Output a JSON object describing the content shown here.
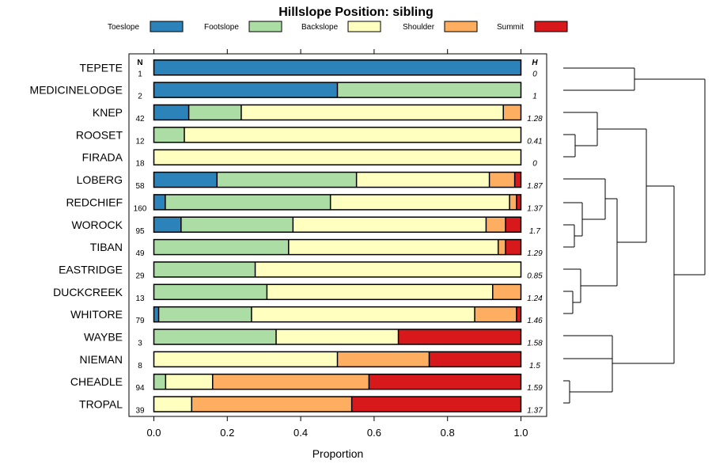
{
  "chart_data": {
    "type": "bar",
    "stacked": true,
    "orientation": "horizontal",
    "title": "Hillslope Position: sibling",
    "xlabel": "Proportion",
    "ylabel": "",
    "xlim": [
      0,
      1
    ],
    "xticks": [
      "0.0",
      "0.2",
      "0.4",
      "0.6",
      "0.8",
      "1.0"
    ],
    "xtick_values": [
      0,
      0.2,
      0.4,
      0.6,
      0.8,
      1.0
    ],
    "legend_position": "top",
    "n_header": "N",
    "h_header": "H",
    "categories": [
      "TEPETE",
      "MEDICINELODGE",
      "KNEP",
      "ROOSET",
      "FIRADA",
      "LOBERG",
      "REDCHIEF",
      "WOROCK",
      "TIBAN",
      "EASTRIDGE",
      "DUCKCREEK",
      "WHITORE",
      "WAYBE",
      "NIEMAN",
      "CHEADLE",
      "TROPAL"
    ],
    "n_values": [
      "1",
      "2",
      "42",
      "12",
      "18",
      "58",
      "160",
      "95",
      "49",
      "29",
      "13",
      "79",
      "3",
      "8",
      "94",
      "39"
    ],
    "h_values": [
      "0",
      "1",
      "1.28",
      "0.41",
      "0",
      "1.87",
      "1.37",
      "1.7",
      "1.29",
      "0.85",
      "1.24",
      "1.46",
      "1.58",
      "1.5",
      "1.59",
      "1.37"
    ],
    "series": [
      {
        "name": "Toeslope",
        "color": "#2b83ba",
        "values": [
          1.0,
          0.5,
          0.095,
          0,
          0,
          0.172,
          0.031,
          0.074,
          0,
          0,
          0,
          0.013,
          0,
          0,
          0,
          0
        ]
      },
      {
        "name": "Footslope",
        "color": "#abdda4",
        "values": [
          0,
          0.5,
          0.143,
          0.083,
          0,
          0.38,
          0.45,
          0.305,
          0.367,
          0.276,
          0.308,
          0.253,
          0.333,
          0,
          0.032,
          0
        ]
      },
      {
        "name": "Backslope",
        "color": "#ffffbf",
        "values": [
          0,
          0,
          0.714,
          0.917,
          1.0,
          0.362,
          0.488,
          0.526,
          0.571,
          0.724,
          0.615,
          0.608,
          0.333,
          0.5,
          0.128,
          0.103
        ]
      },
      {
        "name": "Shoulder",
        "color": "#fdae61",
        "values": [
          0,
          0,
          0.048,
          0,
          0,
          0.069,
          0.019,
          0.053,
          0.02,
          0,
          0.077,
          0.114,
          0,
          0.25,
          0.426,
          0.436
        ]
      },
      {
        "name": "Summit",
        "color": "#d7191c",
        "values": [
          0,
          0,
          0,
          0,
          0,
          0.017,
          0.012,
          0.042,
          0.042,
          0,
          0,
          0.012,
          0.334,
          0.25,
          0.414,
          0.461
        ]
      }
    ]
  }
}
